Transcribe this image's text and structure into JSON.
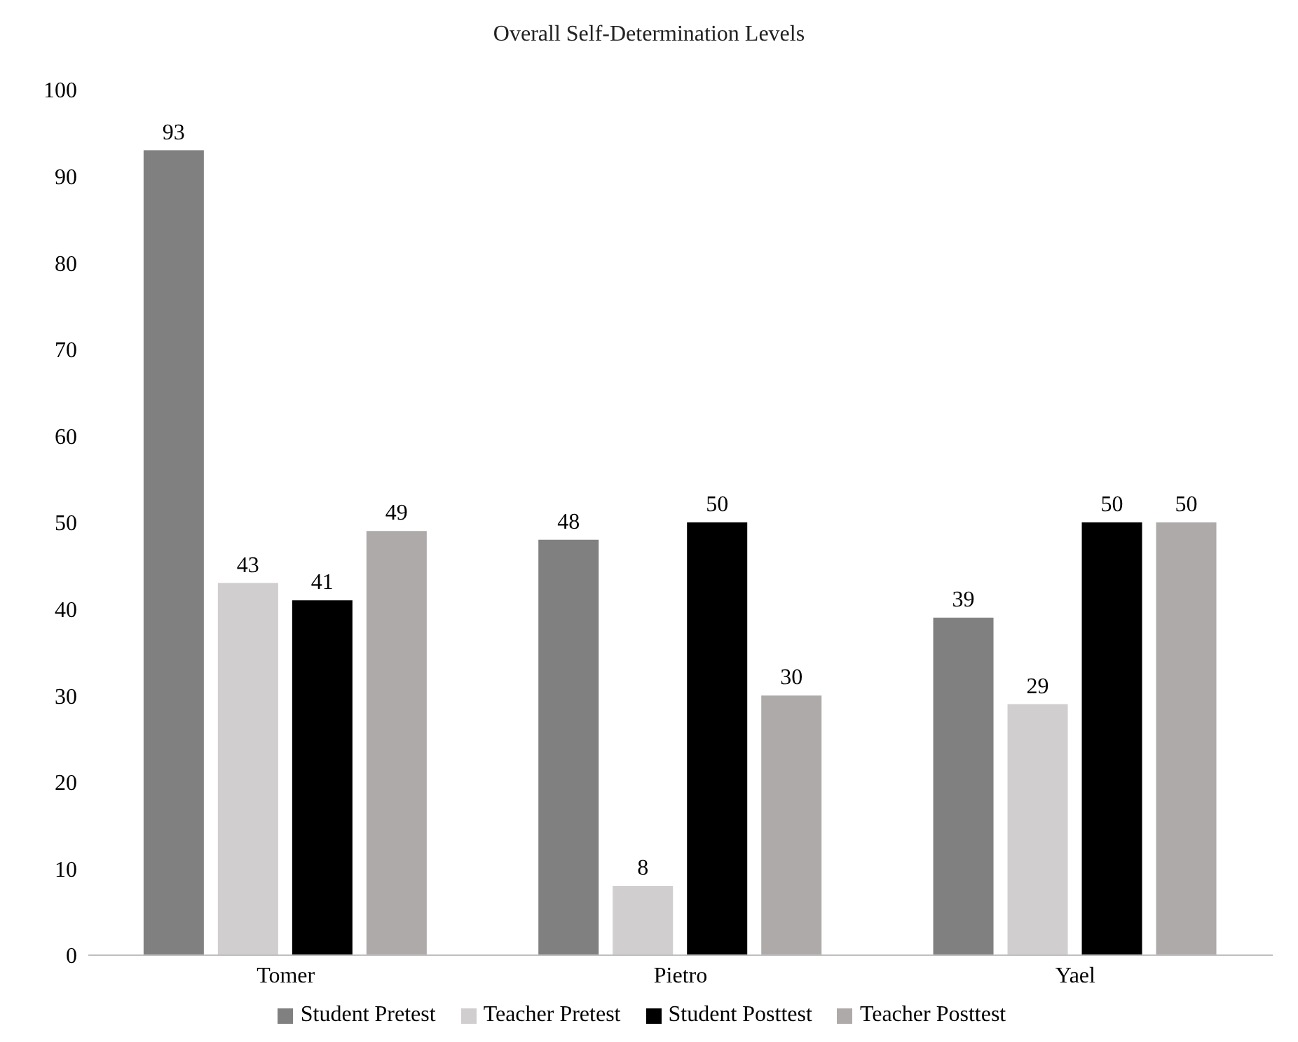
{
  "chart_data": {
    "type": "bar",
    "title": "Overall Self-Determination Levels",
    "categories": [
      "Tomer",
      "Pietro",
      "Yael"
    ],
    "series": [
      {
        "name": "Student Pretest",
        "color": "#808080",
        "values": [
          93,
          48,
          39
        ]
      },
      {
        "name": "Teacher Pretest",
        "color": "#d0cece",
        "values": [
          43,
          8,
          29
        ]
      },
      {
        "name": "Student Posttest",
        "color": "#000000",
        "values": [
          41,
          50,
          50
        ]
      },
      {
        "name": "Teacher Posttest",
        "color": "#aeaaaa",
        "values": [
          49,
          30,
          50
        ]
      }
    ],
    "ylim": [
      0,
      100
    ],
    "yticks": [
      0,
      10,
      20,
      30,
      40,
      50,
      60,
      70,
      80,
      90,
      100
    ],
    "grid": false,
    "legend": "bottom",
    "data_labels": true
  }
}
